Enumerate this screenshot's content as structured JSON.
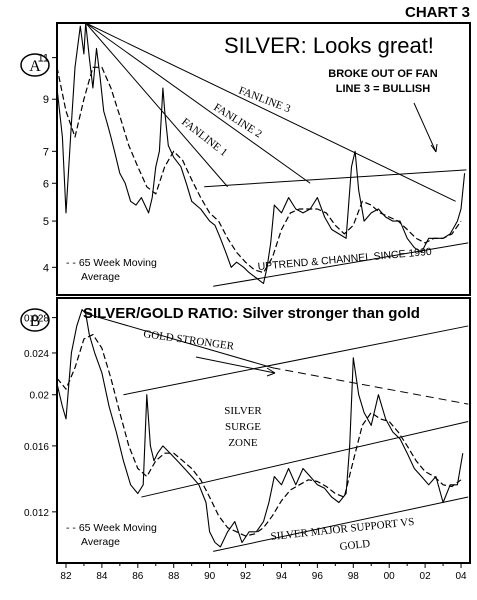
{
  "chart_label": "CHART 3",
  "chart_data": [
    {
      "panel": "A",
      "type": "line",
      "title": "SILVER: Looks great!",
      "yscale": "log",
      "ylim": [
        3.5,
        13
      ],
      "yticks": [
        4,
        5,
        6,
        7,
        9,
        11
      ],
      "xlim": [
        1981.5,
        2004.5
      ],
      "series": [
        {
          "name": "Silver",
          "style": "solid",
          "x": [
            1981.5,
            1981.8,
            1982.0,
            1982.3,
            1982.5,
            1982.8,
            1983.0,
            1983.1,
            1983.3,
            1983.5,
            1983.7,
            1983.9,
            1984.1,
            1984.3,
            1984.5,
            1984.7,
            1985.0,
            1985.3,
            1985.6,
            1985.9,
            1986.2,
            1986.6,
            1986.8,
            1987.0,
            1987.2,
            1987.4,
            1987.5,
            1987.7,
            1988.0,
            1988.4,
            1988.7,
            1989.0,
            1989.5,
            1990.0,
            1990.3,
            1990.6,
            1990.9,
            1991.2,
            1991.5,
            1991.9,
            1992.2,
            1992.6,
            1993.0,
            1993.2,
            1993.4,
            1993.6,
            1994.0,
            1994.4,
            1994.8,
            1995.2,
            1995.6,
            1996.0,
            1996.4,
            1996.8,
            1997.2,
            1997.6,
            1997.9,
            1998.1,
            1998.3,
            1998.6,
            1999.0,
            1999.4,
            1999.8,
            2000.2,
            2000.6,
            2001.0,
            2001.4,
            2001.8,
            2002.2,
            2002.6,
            2003.0,
            2003.4,
            2003.8,
            2004.0,
            2004.2
          ],
          "values": [
            9.5,
            7.5,
            5.2,
            8.0,
            10.5,
            12.8,
            11.2,
            13.0,
            11.0,
            9.5,
            11.5,
            10.0,
            8.5,
            8.0,
            7.5,
            7.0,
            6.3,
            6.0,
            5.5,
            5.4,
            5.6,
            5.2,
            5.6,
            6.5,
            7.0,
            9.5,
            8.5,
            7.2,
            6.8,
            6.5,
            6.0,
            5.5,
            5.3,
            5.0,
            4.9,
            4.6,
            4.3,
            4.0,
            4.1,
            4.0,
            3.9,
            3.8,
            3.7,
            4.0,
            4.5,
            5.4,
            5.2,
            5.6,
            5.3,
            5.2,
            5.3,
            5.6,
            5.1,
            4.8,
            4.7,
            4.6,
            6.5,
            7.0,
            5.8,
            5.0,
            5.2,
            5.3,
            5.1,
            5.0,
            5.0,
            4.6,
            4.4,
            4.3,
            4.6,
            4.6,
            4.6,
            4.7,
            5.0,
            5.3,
            6.3
          ]
        },
        {
          "name": "65 Week Moving Average",
          "style": "dashed",
          "x": [
            1981.5,
            1982.0,
            1982.5,
            1983.0,
            1983.5,
            1984.0,
            1984.5,
            1985.0,
            1985.5,
            1986.0,
            1986.5,
            1987.0,
            1987.5,
            1988.0,
            1988.5,
            1989.0,
            1989.5,
            1990.0,
            1990.5,
            1991.0,
            1991.5,
            1992.0,
            1992.5,
            1993.0,
            1993.5,
            1994.0,
            1994.5,
            1995.0,
            1995.5,
            1996.0,
            1996.5,
            1997.0,
            1997.5,
            1998.0,
            1998.5,
            1999.0,
            1999.5,
            2000.0,
            2000.5,
            2001.0,
            2001.5,
            2002.0,
            2002.5,
            2003.0,
            2003.5,
            2004.0
          ],
          "values": [
            10.5,
            8.5,
            7.5,
            9.0,
            10.5,
            10.5,
            9.5,
            8.3,
            7.2,
            6.5,
            5.9,
            5.7,
            6.5,
            7.0,
            6.7,
            6.1,
            5.6,
            5.2,
            5.0,
            4.6,
            4.3,
            4.1,
            3.95,
            3.9,
            4.2,
            4.8,
            5.2,
            5.3,
            5.3,
            5.3,
            5.2,
            4.9,
            4.7,
            4.9,
            5.5,
            5.4,
            5.2,
            5.1,
            5.0,
            4.8,
            4.6,
            4.5,
            4.6,
            4.6,
            4.7,
            5.0
          ]
        }
      ],
      "trendlines": [
        {
          "label": "FANLINE 1",
          "from": [
            1983.1,
            13.0
          ],
          "to": [
            1991.0,
            5.9
          ]
        },
        {
          "label": "FANLINE 2",
          "from": [
            1983.1,
            13.0
          ],
          "to": [
            1995.6,
            6.0
          ]
        },
        {
          "label": "FANLINE 3",
          "from": [
            1983.1,
            13.0
          ],
          "to": [
            2003.7,
            5.5
          ]
        },
        {
          "label": "",
          "from": [
            1989.7,
            5.9
          ],
          "to": [
            2004.3,
            6.4
          ]
        },
        {
          "label": "",
          "from": [
            1990.2,
            3.65
          ],
          "to": [
            2004.4,
            4.5
          ]
        }
      ],
      "annotations": [
        "BROKE OUT OF FAN LINE 3 = BULLISH",
        "UPTREND & CHANNEL SINCE 1990"
      ],
      "legend": "- - 65 Week Moving Average",
      "legend_position": "bottom-left"
    },
    {
      "panel": "B",
      "type": "line",
      "title": "SILVER/GOLD RATIO: Silver stronger than gold",
      "yscale": "log",
      "ylim": [
        0.0096,
        0.0305
      ],
      "yticks": [
        0.012,
        0.016,
        0.02,
        0.024,
        0.028
      ],
      "ytick_labels": [
        "0.012",
        "0.016",
        "0.02",
        "0.024",
        "0.028"
      ],
      "xlim": [
        1981.5,
        2004.5
      ],
      "xticks": [
        1982,
        1984,
        1986,
        1988,
        1990,
        1992,
        1994,
        1996,
        1998,
        2000,
        2002,
        2004
      ],
      "xtick_labels": [
        "82",
        "84",
        "86",
        "88",
        "90",
        "92",
        "94",
        "96",
        "98",
        "00",
        "02",
        "04"
      ],
      "series": [
        {
          "name": "Silver/Gold ratio",
          "style": "solid",
          "x": [
            1981.5,
            1981.8,
            1982.0,
            1982.3,
            1982.6,
            1982.9,
            1983.1,
            1983.3,
            1983.6,
            1984.0,
            1984.4,
            1984.8,
            1985.2,
            1985.6,
            1986.0,
            1986.3,
            1986.5,
            1986.7,
            1986.9,
            1987.1,
            1987.4,
            1987.8,
            1988.2,
            1988.6,
            1989.0,
            1989.4,
            1989.8,
            1990.0,
            1990.3,
            1990.6,
            1991.0,
            1991.4,
            1991.8,
            1992.2,
            1992.6,
            1993.0,
            1993.3,
            1993.6,
            1994.0,
            1994.4,
            1994.8,
            1995.2,
            1995.6,
            1996.0,
            1996.4,
            1996.8,
            1997.2,
            1997.6,
            1997.8,
            1998.0,
            1998.3,
            1998.6,
            1999.0,
            1999.4,
            1999.8,
            2000.2,
            2000.6,
            2001.0,
            2001.4,
            2001.8,
            2002.2,
            2002.6,
            2003.0,
            2003.4,
            2003.8,
            2004.1
          ],
          "values": [
            0.021,
            0.019,
            0.018,
            0.024,
            0.027,
            0.029,
            0.0285,
            0.026,
            0.024,
            0.022,
            0.019,
            0.017,
            0.015,
            0.0135,
            0.013,
            0.0135,
            0.02,
            0.016,
            0.015,
            0.0155,
            0.016,
            0.0155,
            0.015,
            0.0145,
            0.014,
            0.0135,
            0.0125,
            0.011,
            0.0105,
            0.0103,
            0.011,
            0.0115,
            0.0105,
            0.011,
            0.011,
            0.0115,
            0.0125,
            0.014,
            0.0135,
            0.0145,
            0.0135,
            0.0145,
            0.014,
            0.0135,
            0.0133,
            0.0128,
            0.0125,
            0.013,
            0.016,
            0.0235,
            0.02,
            0.0185,
            0.0175,
            0.02,
            0.018,
            0.017,
            0.0165,
            0.0155,
            0.0145,
            0.014,
            0.0135,
            0.014,
            0.0125,
            0.0135,
            0.0135,
            0.0155
          ]
        },
        {
          "name": "65 Week Moving Average",
          "style": "dashed",
          "x": [
            1981.5,
            1982.0,
            1982.5,
            1983.0,
            1983.5,
            1984.0,
            1984.5,
            1985.0,
            1985.5,
            1986.0,
            1986.5,
            1987.0,
            1987.5,
            1988.0,
            1988.5,
            1989.0,
            1989.5,
            1990.0,
            1990.5,
            1991.0,
            1991.5,
            1992.0,
            1992.5,
            1993.0,
            1993.5,
            1994.0,
            1994.5,
            1995.0,
            1995.5,
            1996.0,
            1996.5,
            1997.0,
            1997.5,
            1998.0,
            1998.5,
            1999.0,
            1999.5,
            2000.0,
            2000.5,
            2001.0,
            2001.5,
            2002.0,
            2002.5,
            2003.0,
            2003.5,
            2004.0
          ],
          "values": [
            0.0215,
            0.0205,
            0.0225,
            0.0255,
            0.026,
            0.0245,
            0.0215,
            0.0185,
            0.016,
            0.0145,
            0.014,
            0.015,
            0.0155,
            0.0155,
            0.015,
            0.0145,
            0.0138,
            0.0128,
            0.0118,
            0.0112,
            0.011,
            0.0108,
            0.0109,
            0.0112,
            0.0118,
            0.0126,
            0.0132,
            0.0135,
            0.0138,
            0.0137,
            0.0134,
            0.013,
            0.0128,
            0.015,
            0.0175,
            0.0185,
            0.018,
            0.0178,
            0.017,
            0.016,
            0.015,
            0.0143,
            0.014,
            0.0135,
            0.0134,
            0.0138
          ]
        }
      ],
      "trendlines": [
        {
          "label": "GOLD STRONGER",
          "style": "solid",
          "from": [
            1983.1,
            0.0285
          ],
          "to": [
            1993.5,
            0.0225
          ]
        },
        {
          "label": "",
          "style": "dashed",
          "from": [
            1993.5,
            0.0225
          ],
          "to": [
            2004.4,
            0.0192
          ]
        },
        {
          "label": "",
          "style": "solid",
          "from": [
            1985.2,
            0.02
          ],
          "to": [
            2004.4,
            0.027
          ]
        },
        {
          "label": "",
          "style": "solid",
          "from": [
            1986.2,
            0.0128
          ],
          "to": [
            2004.4,
            0.0178
          ]
        },
        {
          "label": "",
          "style": "solid",
          "from": [
            1990.2,
            0.0101
          ],
          "to": [
            2004.4,
            0.0128
          ]
        }
      ],
      "annotations": [
        "GOLD STRONGER",
        "SILVER SURGE ZONE",
        "SILVER MAJOR SUPPORT VS GOLD"
      ],
      "legend": "- - 65 Week Moving Average",
      "legend_position": "bottom-left"
    }
  ],
  "text": {
    "panel_a_badge": "A",
    "panel_b_badge": "B",
    "panel_a_title": "SILVER: Looks great!",
    "panel_b_title": "SILVER/GOLD RATIO: Silver stronger than gold",
    "fanline_1": "FANLINE 1",
    "fanline_2": "FANLINE 2",
    "fanline_3": "FANLINE 3",
    "breakout_line1": "BROKE OUT OF FAN",
    "breakout_line2": "LINE 3 = BULLISH",
    "uptrend": "UPTREND & CHANNEL SINCE 1990",
    "legend_a_line1": "- - 65 Week Moving",
    "legend_a_line2": "Average",
    "gold_stronger": "GOLD STRONGER",
    "surge_line1": "SILVER",
    "surge_line2": "SURGE",
    "surge_line3": "ZONE",
    "support_line1": "SILVER MAJOR SUPPORT VS",
    "support_line2": "GOLD",
    "legend_b_line1": "- - 65 Week Moving",
    "legend_b_line2": "Average"
  }
}
